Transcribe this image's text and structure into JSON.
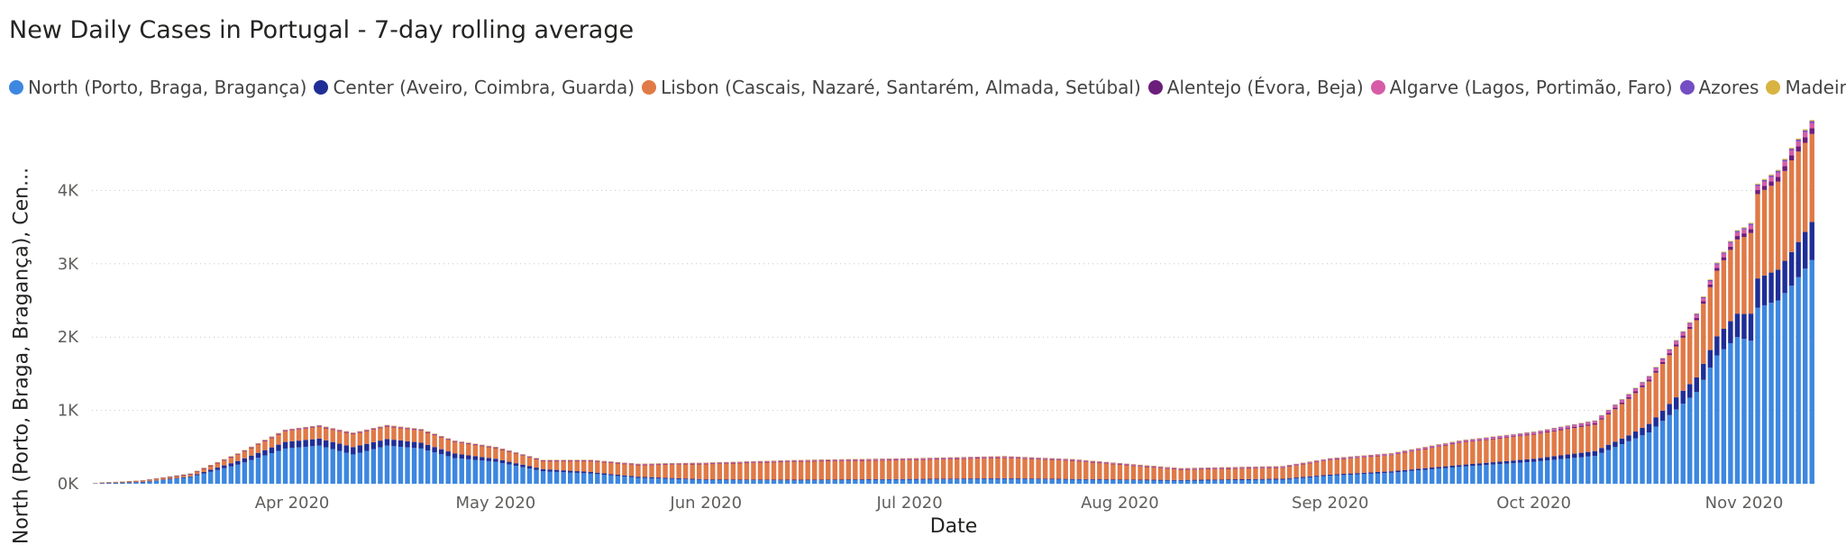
{
  "chart_data": {
    "type": "bar",
    "stacked": true,
    "title": "New Daily Cases in Portugal - 7-day rolling average",
    "xlabel": "Date",
    "ylabel": "North (Porto, Braga, Bragança), Cen...",
    "ylim": [
      0,
      5000
    ],
    "yticks": [
      {
        "value": 0,
        "label": "0K"
      },
      {
        "value": 1000,
        "label": "1K"
      },
      {
        "value": 2000,
        "label": "2K"
      },
      {
        "value": 3000,
        "label": "3K"
      },
      {
        "value": 4000,
        "label": "4K"
      }
    ],
    "x_start": "2020-03-03",
    "x_end": "2020-11-11",
    "xticks": [
      {
        "date": "2020-04-01",
        "label": "Apr 2020"
      },
      {
        "date": "2020-05-01",
        "label": "May 2020"
      },
      {
        "date": "2020-06-01",
        "label": "Jun 2020"
      },
      {
        "date": "2020-07-01",
        "label": "Jul 2020"
      },
      {
        "date": "2020-08-01",
        "label": "Aug 2020"
      },
      {
        "date": "2020-09-01",
        "label": "Sep 2020"
      },
      {
        "date": "2020-10-01",
        "label": "Oct 2020"
      },
      {
        "date": "2020-11-01",
        "label": "Nov 2020"
      }
    ],
    "grid": true,
    "legend_position": "top-left",
    "series": [
      {
        "name": "North (Porto, Braga, Bragança)",
        "color": "#3d87e0",
        "keypoints": [
          [
            "2020-03-03",
            5
          ],
          [
            "2020-03-10",
            20
          ],
          [
            "2020-03-17",
            90
          ],
          [
            "2020-03-24",
            260
          ],
          [
            "2020-03-31",
            480
          ],
          [
            "2020-04-05",
            520
          ],
          [
            "2020-04-10",
            400
          ],
          [
            "2020-04-15",
            520
          ],
          [
            "2020-04-20",
            480
          ],
          [
            "2020-04-25",
            350
          ],
          [
            "2020-05-01",
            300
          ],
          [
            "2020-05-08",
            170
          ],
          [
            "2020-05-15",
            140
          ],
          [
            "2020-05-22",
            80
          ],
          [
            "2020-06-01",
            50
          ],
          [
            "2020-06-15",
            45
          ],
          [
            "2020-07-01",
            55
          ],
          [
            "2020-07-15",
            65
          ],
          [
            "2020-07-25",
            55
          ],
          [
            "2020-08-10",
            40
          ],
          [
            "2020-08-25",
            55
          ],
          [
            "2020-09-01",
            110
          ],
          [
            "2020-09-10",
            150
          ],
          [
            "2020-09-20",
            230
          ],
          [
            "2020-10-01",
            300
          ],
          [
            "2020-10-10",
            380
          ],
          [
            "2020-10-18",
            700
          ],
          [
            "2020-10-25",
            1250
          ],
          [
            "2020-10-28",
            1750
          ],
          [
            "2020-10-31",
            2000
          ],
          [
            "2020-11-02",
            1950
          ],
          [
            "2020-11-03",
            2400
          ],
          [
            "2020-11-06",
            2500
          ],
          [
            "2020-11-08",
            2700
          ],
          [
            "2020-11-11",
            3050
          ]
        ]
      },
      {
        "name": "Center (Aveiro, Coimbra, Guarda)",
        "color": "#1f2e96",
        "keypoints": [
          [
            "2020-03-03",
            0
          ],
          [
            "2020-03-17",
            10
          ],
          [
            "2020-03-31",
            90
          ],
          [
            "2020-04-10",
            100
          ],
          [
            "2020-04-20",
            80
          ],
          [
            "2020-05-01",
            40
          ],
          [
            "2020-05-15",
            20
          ],
          [
            "2020-06-01",
            10
          ],
          [
            "2020-07-01",
            10
          ],
          [
            "2020-08-01",
            10
          ],
          [
            "2020-09-01",
            15
          ],
          [
            "2020-09-20",
            25
          ],
          [
            "2020-10-01",
            40
          ],
          [
            "2020-10-15",
            80
          ],
          [
            "2020-10-25",
            200
          ],
          [
            "2020-11-01",
            340
          ],
          [
            "2020-11-03",
            400
          ],
          [
            "2020-11-06",
            420
          ],
          [
            "2020-11-11",
            520
          ]
        ]
      },
      {
        "name": "Lisbon (Cascais, Nazaré, Santarém, Almada, Setúbal)",
        "color": "#e07a47",
        "keypoints": [
          [
            "2020-03-03",
            5
          ],
          [
            "2020-03-17",
            30
          ],
          [
            "2020-03-31",
            150
          ],
          [
            "2020-04-10",
            180
          ],
          [
            "2020-04-20",
            170
          ],
          [
            "2020-05-01",
            150
          ],
          [
            "2020-05-08",
            110
          ],
          [
            "2020-05-15",
            150
          ],
          [
            "2020-05-22",
            160
          ],
          [
            "2020-06-01",
            210
          ],
          [
            "2020-06-15",
            250
          ],
          [
            "2020-07-01",
            260
          ],
          [
            "2020-07-15",
            280
          ],
          [
            "2020-07-25",
            250
          ],
          [
            "2020-08-10",
            140
          ],
          [
            "2020-08-25",
            150
          ],
          [
            "2020-09-01",
            200
          ],
          [
            "2020-09-10",
            220
          ],
          [
            "2020-09-20",
            300
          ],
          [
            "2020-10-01",
            330
          ],
          [
            "2020-10-10",
            360
          ],
          [
            "2020-10-18",
            580
          ],
          [
            "2020-10-25",
            780
          ],
          [
            "2020-11-01",
            1050
          ],
          [
            "2020-11-03",
            1150
          ],
          [
            "2020-11-06",
            1200
          ],
          [
            "2020-11-08",
            1250
          ],
          [
            "2020-11-11",
            1200
          ]
        ]
      },
      {
        "name": "Alentejo (Évora, Beja)",
        "color": "#6b1e7a",
        "keypoints": [
          [
            "2020-03-03",
            0
          ],
          [
            "2020-06-01",
            3
          ],
          [
            "2020-08-01",
            4
          ],
          [
            "2020-09-01",
            5
          ],
          [
            "2020-10-01",
            10
          ],
          [
            "2020-10-25",
            30
          ],
          [
            "2020-11-05",
            60
          ],
          [
            "2020-11-11",
            80
          ]
        ]
      },
      {
        "name": "Algarve (Lagos, Portimão, Faro)",
        "color": "#d65ca8",
        "keypoints": [
          [
            "2020-03-03",
            0
          ],
          [
            "2020-04-01",
            12
          ],
          [
            "2020-05-01",
            8
          ],
          [
            "2020-06-01",
            12
          ],
          [
            "2020-07-01",
            15
          ],
          [
            "2020-08-01",
            12
          ],
          [
            "2020-09-01",
            12
          ],
          [
            "2020-10-01",
            18
          ],
          [
            "2020-10-25",
            40
          ],
          [
            "2020-11-05",
            60
          ],
          [
            "2020-11-11",
            70
          ]
        ]
      },
      {
        "name": "Azores",
        "color": "#744ec2",
        "keypoints": [
          [
            "2020-03-03",
            0
          ],
          [
            "2020-04-01",
            3
          ],
          [
            "2020-06-01",
            2
          ],
          [
            "2020-09-01",
            4
          ],
          [
            "2020-10-15",
            10
          ],
          [
            "2020-11-11",
            25
          ]
        ]
      },
      {
        "name": "Madeira",
        "color": "#d9b342",
        "keypoints": [
          [
            "2020-03-03",
            0
          ],
          [
            "2020-04-01",
            3
          ],
          [
            "2020-06-01",
            2
          ],
          [
            "2020-09-01",
            3
          ],
          [
            "2020-10-15",
            6
          ],
          [
            "2020-11-11",
            15
          ]
        ]
      }
    ]
  }
}
